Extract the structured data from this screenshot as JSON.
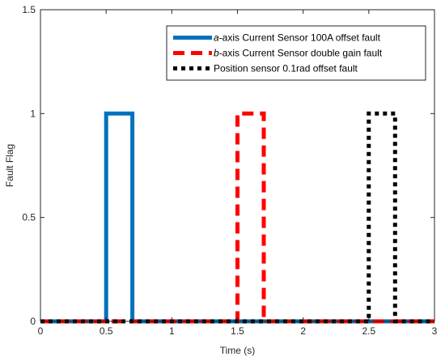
{
  "chart_data": {
    "type": "line",
    "xlabel": "Time (s)",
    "ylabel": "Fault Flag",
    "xlim": [
      0,
      3
    ],
    "ylim": [
      0,
      1.5
    ],
    "xticks": [
      0,
      0.5,
      1,
      1.5,
      2,
      2.5,
      3
    ],
    "xtick_labels": [
      "0",
      "0.5",
      "1",
      "1.5",
      "2",
      "2.5",
      "3"
    ],
    "yticks": [
      0,
      0.5,
      1,
      1.5
    ],
    "ytick_labels": [
      "0",
      "0.5",
      "1",
      "1.5"
    ],
    "grid": false,
    "legend_position": "top-right",
    "series": [
      {
        "name_prefix": "a",
        "name_rest": "-axis Current Sensor 100A offset fault",
        "color": "#0072BD",
        "style": "solid",
        "points": [
          [
            0,
            0
          ],
          [
            0.5,
            0
          ],
          [
            0.5,
            1
          ],
          [
            0.7,
            1
          ],
          [
            0.7,
            0
          ],
          [
            3,
            0
          ]
        ]
      },
      {
        "name_prefix": "b",
        "name_rest": "-axis Current Sensor double gain fault",
        "color": "#FF0000",
        "style": "dashed",
        "points": [
          [
            0,
            0
          ],
          [
            1.5,
            0
          ],
          [
            1.5,
            1
          ],
          [
            1.7,
            1
          ],
          [
            1.7,
            0
          ],
          [
            3,
            0
          ]
        ]
      },
      {
        "name_prefix": "",
        "name_rest": "Position sensor 0.1rad offset fault",
        "color": "#000000",
        "style": "dotted",
        "points": [
          [
            0,
            0
          ],
          [
            2.5,
            0
          ],
          [
            2.5,
            1
          ],
          [
            2.7,
            1
          ],
          [
            2.7,
            0
          ],
          [
            3,
            0
          ]
        ]
      }
    ]
  }
}
